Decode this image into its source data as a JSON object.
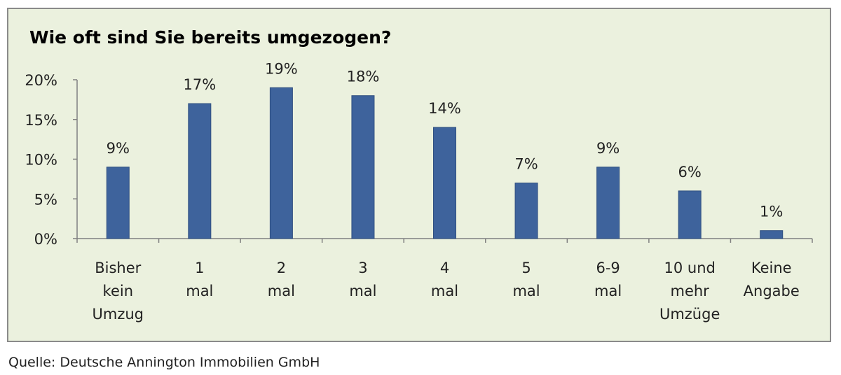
{
  "chart_data": {
    "type": "bar",
    "title": "Wie oft sind Sie bereits umgezogen?",
    "categories": [
      "Bisher kein Umzug",
      "1 mal",
      "2 mal",
      "3 mal",
      "4 mal",
      "5 mal",
      "6-9 mal",
      "10 und mehr Umzüge",
      "Keine Angabe"
    ],
    "category_lines": [
      [
        "Bisher",
        "kein",
        "Umzug"
      ],
      [
        "1",
        "mal"
      ],
      [
        "2",
        "mal"
      ],
      [
        "3",
        "mal"
      ],
      [
        "4",
        "mal"
      ],
      [
        "5",
        "mal"
      ],
      [
        "6-9",
        "mal"
      ],
      [
        "10 und",
        "mehr",
        "Umzüge"
      ],
      [
        "Keine",
        "Angabe"
      ]
    ],
    "values": [
      9,
      17,
      19,
      18,
      14,
      7,
      9,
      6,
      1
    ],
    "data_labels": [
      "9%",
      "17%",
      "19%",
      "18%",
      "14%",
      "7%",
      "9%",
      "6%",
      "1%"
    ],
    "y_ticks": [
      0,
      5,
      10,
      15,
      20
    ],
    "y_tick_labels": [
      "0%",
      "5%",
      "10%",
      "15%",
      "20%"
    ],
    "ylim": [
      0,
      20
    ],
    "grid": false,
    "legend": "none",
    "colors": {
      "bar": "#3e639c",
      "background": "#ebf1de"
    }
  },
  "source": "Quelle: Deutsche Annington Immobilien GmbH"
}
